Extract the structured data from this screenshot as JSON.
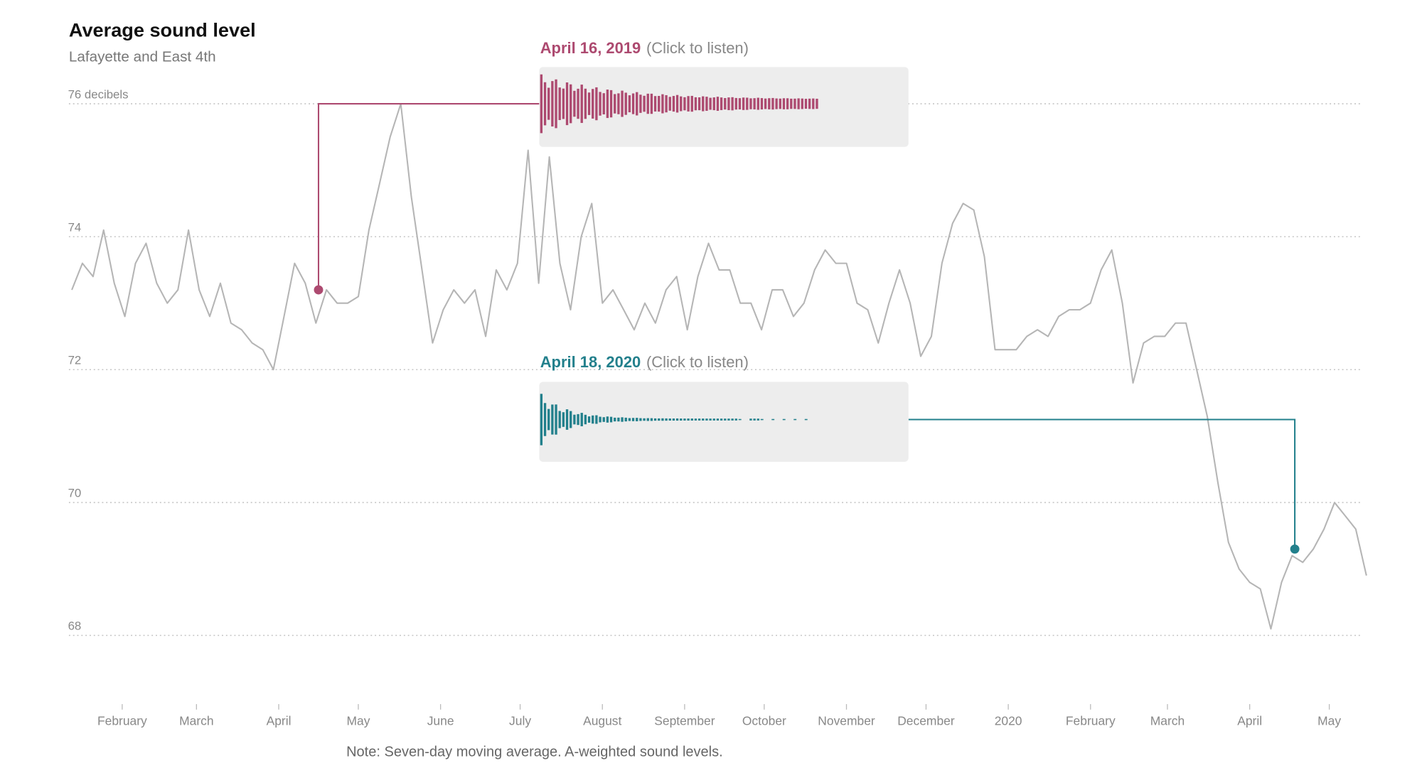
{
  "chart_data": {
    "type": "line",
    "title": "Average sound level",
    "subtitle": "Lafayette and East 4th",
    "note": "Note: Seven-day moving average. A-weighted sound levels.",
    "xlim": [
      12,
      500
    ],
    "ylim": [
      67,
      76.3
    ],
    "yticks": [
      68,
      70,
      72,
      74,
      {
        "value": 76,
        "label": "76 decibels"
      }
    ],
    "xticks": [
      {
        "value": 31,
        "label": "February"
      },
      {
        "value": 59,
        "label": "March"
      },
      {
        "value": 90,
        "label": "April"
      },
      {
        "value": 120,
        "label": "May"
      },
      {
        "value": 151,
        "label": "June"
      },
      {
        "value": 181,
        "label": "July"
      },
      {
        "value": 212,
        "label": "August"
      },
      {
        "value": 243,
        "label": "September"
      },
      {
        "value": 273,
        "label": "October"
      },
      {
        "value": 304,
        "label": "November"
      },
      {
        "value": 334,
        "label": "December"
      },
      {
        "value": 365,
        "label": "2020"
      },
      {
        "value": 396,
        "label": "February"
      },
      {
        "value": 425,
        "label": "March"
      },
      {
        "value": 456,
        "label": "April"
      },
      {
        "value": 486,
        "label": "May"
      }
    ],
    "grid": true,
    "series": [
      {
        "color": "#b5b5b5",
        "x": [
          12,
          16,
          20,
          24,
          28,
          32,
          36,
          40,
          44,
          48,
          52,
          56,
          60,
          64,
          68,
          72,
          76,
          80,
          84,
          88,
          92,
          96,
          100,
          104,
          108,
          112,
          116,
          120,
          124,
          128,
          132,
          136,
          140,
          144,
          148,
          152,
          156,
          160,
          164,
          168,
          172,
          176,
          180,
          184,
          188,
          192,
          196,
          200,
          204,
          208,
          212,
          216,
          220,
          224,
          228,
          232,
          236,
          240,
          244,
          248,
          252,
          256,
          260,
          264,
          268,
          272,
          276,
          280,
          284,
          288,
          292,
          296,
          300,
          304,
          308,
          312,
          316,
          320,
          324,
          328,
          332,
          336,
          340,
          344,
          348,
          352,
          356,
          360,
          364,
          368,
          372,
          376,
          380,
          384,
          388,
          392,
          396,
          400,
          404,
          408,
          412,
          416,
          420,
          424,
          428,
          432,
          436,
          440,
          444,
          448,
          452,
          456,
          460,
          464,
          468,
          472,
          476,
          480,
          484,
          488,
          492,
          496,
          500
        ],
        "values": [
          73.2,
          73.6,
          73.4,
          74.1,
          73.3,
          72.8,
          73.6,
          73.9,
          73.3,
          73.0,
          73.2,
          74.1,
          73.2,
          72.8,
          73.3,
          72.7,
          72.6,
          72.4,
          72.3,
          72.0,
          72.8,
          73.6,
          73.3,
          72.7,
          73.2,
          73.0,
          73.0,
          73.1,
          74.1,
          74.8,
          75.5,
          76.0,
          74.6,
          73.5,
          72.4,
          72.9,
          73.2,
          73.0,
          73.2,
          72.5,
          73.5,
          73.2,
          73.6,
          75.3,
          73.3,
          75.2,
          73.6,
          72.9,
          74.0,
          74.5,
          73.0,
          73.2,
          72.9,
          72.6,
          73.0,
          72.7,
          73.2,
          73.4,
          72.6,
          73.4,
          73.9,
          73.5,
          73.5,
          73.0,
          73.0,
          72.6,
          73.2,
          73.2,
          72.8,
          73.0,
          73.5,
          73.8,
          73.6,
          73.6,
          73.0,
          72.9,
          72.4,
          73.0,
          73.5,
          73.0,
          72.2,
          72.5,
          73.6,
          74.2,
          74.5,
          74.4,
          73.7,
          72.3,
          72.3,
          72.3,
          72.5,
          72.6,
          72.5,
          72.8,
          72.9,
          72.9,
          73.0,
          73.5,
          73.8,
          73.0,
          71.8,
          72.4,
          72.5,
          72.5,
          72.7,
          72.7,
          72.0,
          71.3,
          70.3,
          69.4,
          69.0,
          68.8,
          68.7,
          68.1,
          68.8,
          69.2,
          69.1,
          69.3,
          69.6,
          70.0,
          69.8,
          69.6,
          68.9
        ]
      }
    ],
    "annotations": [
      {
        "x": 105,
        "y": 73.2,
        "date": "April 16, 2019",
        "action": "(Click to listen)",
        "color": "#ad4a70"
      },
      {
        "x": 473,
        "y": 69.3,
        "date": "April 18, 2020",
        "action": "(Click to listen)",
        "color": "#23808c"
      }
    ]
  }
}
